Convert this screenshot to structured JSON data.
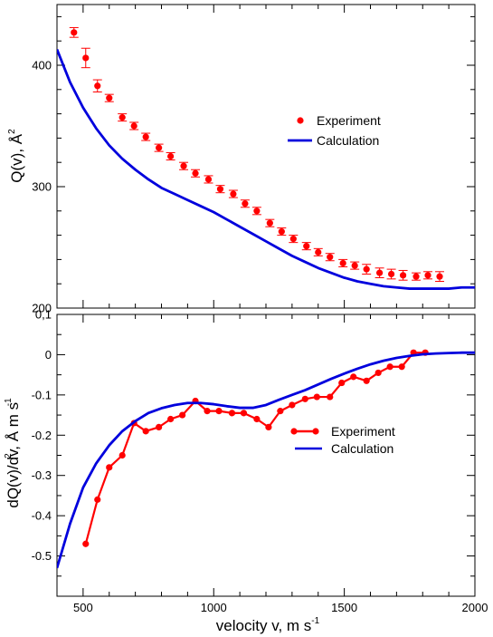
{
  "chart_data": [
    {
      "type": "scatter",
      "panel": "top",
      "ylabel_main": "Q(v), Å",
      "ylabel_sup": "2",
      "xlim": [
        400,
        2000
      ],
      "ylim": [
        200,
        450
      ],
      "xticks": [
        500,
        1000,
        1500,
        2000
      ],
      "yticks": [
        200,
        300,
        400
      ],
      "ytick_labels": [
        "200",
        "300",
        "400"
      ],
      "show_xtick_labels": false,
      "legend_position": "center-right",
      "series": [
        {
          "name": "Experiment",
          "kind": "points-with-errorbars",
          "color": "#ff0000",
          "x": [
            465,
            510,
            555,
            600,
            650,
            695,
            740,
            790,
            835,
            885,
            930,
            980,
            1025,
            1075,
            1120,
            1165,
            1215,
            1260,
            1305,
            1355,
            1400,
            1445,
            1495,
            1540,
            1585,
            1635,
            1680,
            1725,
            1775,
            1820,
            1865
          ],
          "y": [
            427,
            406,
            383,
            373,
            357,
            350,
            341,
            332,
            325,
            317,
            311,
            306,
            298,
            294,
            286,
            280,
            270,
            263,
            257,
            251,
            246,
            242,
            237,
            235,
            232,
            229,
            228,
            227,
            226,
            227,
            226
          ],
          "err": [
            4,
            8,
            5,
            3,
            3,
            3,
            3,
            3,
            3,
            3,
            3,
            3,
            3,
            3,
            3,
            3,
            3,
            3,
            3,
            3,
            3,
            3,
            3,
            3,
            4,
            4,
            4,
            4,
            3,
            3,
            4
          ]
        },
        {
          "name": "Calculation",
          "kind": "line",
          "color": "#0000dd",
          "x": [
            400,
            450,
            500,
            550,
            600,
            650,
            700,
            750,
            800,
            850,
            900,
            950,
            1000,
            1050,
            1100,
            1150,
            1200,
            1250,
            1300,
            1350,
            1400,
            1450,
            1500,
            1550,
            1600,
            1650,
            1700,
            1750,
            1800,
            1850,
            1900,
            1950,
            2000
          ],
          "y": [
            413,
            386,
            365,
            348,
            334,
            323,
            314,
            306,
            299,
            294,
            289,
            284,
            279,
            273,
            267,
            261,
            255,
            249,
            243,
            238,
            233,
            229,
            225,
            222,
            220,
            218,
            217,
            216,
            216,
            216,
            216,
            217,
            217
          ]
        }
      ]
    },
    {
      "type": "line",
      "panel": "bottom",
      "xlabel_main": "velocity v, m s",
      "xlabel_sup": "-1",
      "ylabel_main": "dQ(v)/dv, Å m s",
      "ylabel_sup1": "2",
      "ylabel_sup2": "-1",
      "xlim": [
        400,
        2000
      ],
      "ylim": [
        -0.6,
        0.1
      ],
      "xticks": [
        500,
        1000,
        1500,
        2000
      ],
      "xtick_labels": [
        "500",
        "1000",
        "1500",
        "2000"
      ],
      "yticks": [
        -0.5,
        -0.4,
        -0.3,
        -0.2,
        -0.1,
        0,
        0.1
      ],
      "ytick_labels": [
        "-0.5",
        "-0.4",
        "-0.3",
        "-0.2",
        "-0.1",
        "0",
        "0,1"
      ],
      "legend_position": "center-right",
      "series": [
        {
          "name": "Experiment",
          "kind": "line-with-markers",
          "color": "#ff0000",
          "x": [
            510,
            555,
            600,
            650,
            695,
            740,
            790,
            835,
            880,
            930,
            975,
            1020,
            1070,
            1115,
            1165,
            1210,
            1255,
            1300,
            1350,
            1395,
            1445,
            1490,
            1535,
            1585,
            1630,
            1675,
            1720,
            1765,
            1810
          ],
          "y": [
            -0.47,
            -0.36,
            -0.28,
            -0.25,
            -0.17,
            -0.19,
            -0.18,
            -0.16,
            -0.15,
            -0.115,
            -0.14,
            -0.14,
            -0.145,
            -0.145,
            -0.16,
            -0.18,
            -0.14,
            -0.125,
            -0.11,
            -0.105,
            -0.105,
            -0.07,
            -0.055,
            -0.065,
            -0.045,
            -0.03,
            -0.03,
            0.005,
            0.005
          ]
        },
        {
          "name": "Calculation",
          "kind": "line",
          "color": "#0000dd",
          "x": [
            400,
            450,
            500,
            550,
            600,
            650,
            700,
            750,
            800,
            850,
            900,
            950,
            1000,
            1050,
            1100,
            1150,
            1200,
            1250,
            1300,
            1350,
            1400,
            1450,
            1500,
            1550,
            1600,
            1650,
            1700,
            1750,
            1800,
            1850,
            1900,
            1950,
            2000
          ],
          "y": [
            -0.53,
            -0.42,
            -0.33,
            -0.27,
            -0.225,
            -0.19,
            -0.165,
            -0.145,
            -0.133,
            -0.125,
            -0.12,
            -0.12,
            -0.123,
            -0.128,
            -0.132,
            -0.132,
            -0.125,
            -0.112,
            -0.1,
            -0.088,
            -0.074,
            -0.06,
            -0.047,
            -0.035,
            -0.024,
            -0.015,
            -0.008,
            -0.003,
            0.001,
            0.003,
            0.004,
            0.005,
            0.005
          ]
        }
      ]
    }
  ]
}
